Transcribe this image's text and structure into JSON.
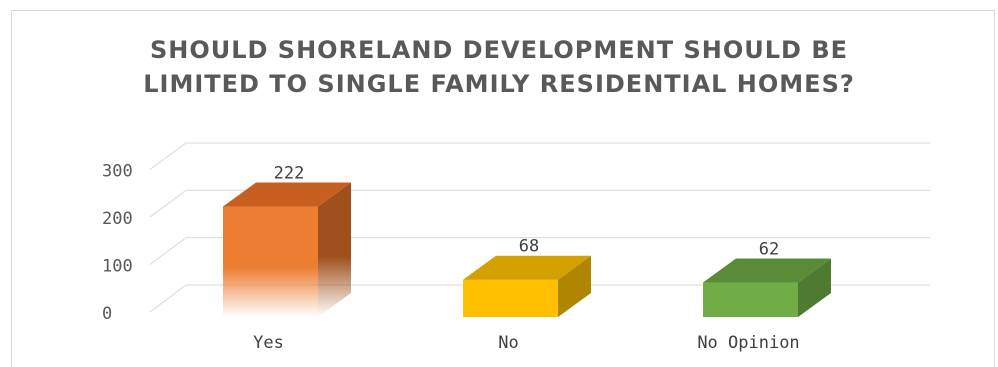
{
  "chart_data": {
    "type": "bar",
    "title_lines": [
      "SHOULD SHORELAND DEVELOPMENT SHOULD BE",
      "LIMITED TO SINGLE FAMILY RESIDENTIAL HOMES?"
    ],
    "categories": [
      "Yes",
      "No",
      "No Opinion"
    ],
    "values": [
      222,
      68,
      62
    ],
    "value_labels": [
      "222",
      "68",
      "62"
    ],
    "yticks": [
      0,
      100,
      200,
      300
    ],
    "ytick_labels": [
      "0",
      "100",
      "200",
      "300"
    ],
    "ylim": [
      0,
      300
    ],
    "grid": true,
    "style": "3d-column",
    "bar_colors": [
      "#ED7D31",
      "#FFC000",
      "#70AD47"
    ]
  }
}
